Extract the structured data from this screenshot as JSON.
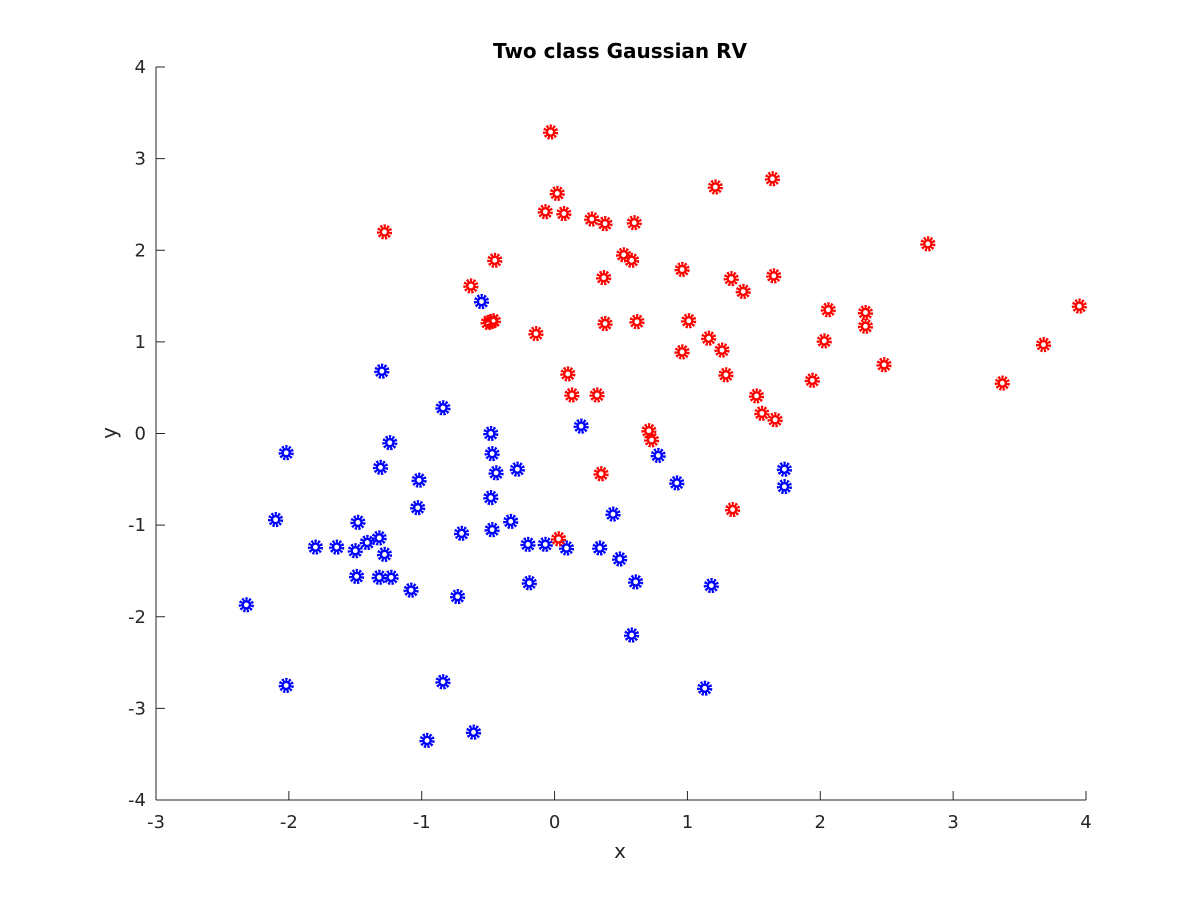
{
  "chart_data": {
    "type": "scatter",
    "title": "Two class Gaussian RV",
    "xlabel": "x",
    "ylabel": "y",
    "xlim": [
      -3,
      4
    ],
    "ylim": [
      -4,
      4
    ],
    "xticks": [
      -3,
      -2,
      -1,
      0,
      1,
      2,
      3,
      4
    ],
    "yticks": [
      -4,
      -3,
      -2,
      -1,
      0,
      1,
      2,
      3,
      4
    ],
    "xtick_labels": [
      "-3",
      "-2",
      "-1",
      "0",
      "1",
      "2",
      "3",
      "4"
    ],
    "ytick_labels": [
      "-4",
      "-3",
      "-2",
      "-1",
      "0",
      "1",
      "2",
      "3",
      "4"
    ],
    "grid": false,
    "series": [
      {
        "color": "#0000ff",
        "marker": "gear",
        "points": [
          [
            -0.55,
            1.44
          ],
          [
            -1.3,
            0.68
          ],
          [
            -0.84,
            0.28
          ],
          [
            -2.02,
            -0.21
          ],
          [
            -1.24,
            -0.1
          ],
          [
            -1.31,
            -0.37
          ],
          [
            -1.02,
            -0.51
          ],
          [
            -1.03,
            -0.81
          ],
          [
            -2.1,
            -0.94
          ],
          [
            -1.48,
            -0.97
          ],
          [
            -1.32,
            -1.14
          ],
          [
            -1.41,
            -1.19
          ],
          [
            -1.5,
            -1.28
          ],
          [
            -1.28,
            -1.32
          ],
          [
            -1.8,
            -1.24
          ],
          [
            -1.64,
            -1.24
          ],
          [
            -1.49,
            -1.56
          ],
          [
            -1.32,
            -1.57
          ],
          [
            -1.23,
            -1.57
          ],
          [
            -1.08,
            -1.71
          ],
          [
            -2.32,
            -1.87
          ],
          [
            -0.73,
            -1.78
          ],
          [
            -0.7,
            -1.09
          ],
          [
            -2.02,
            -2.75
          ],
          [
            -0.84,
            -2.71
          ],
          [
            -0.96,
            -3.35
          ],
          [
            -0.61,
            -3.26
          ],
          [
            -0.48,
            0.0
          ],
          [
            -0.47,
            -0.22
          ],
          [
            -0.44,
            -0.43
          ],
          [
            -0.28,
            -0.39
          ],
          [
            -0.48,
            -0.7
          ],
          [
            -0.47,
            -1.05
          ],
          [
            -0.33,
            -0.96
          ],
          [
            -0.2,
            -1.21
          ],
          [
            -0.07,
            -1.21
          ],
          [
            0.09,
            -1.25
          ],
          [
            -0.19,
            -1.63
          ],
          [
            0.2,
            0.08
          ],
          [
            0.34,
            -1.25
          ],
          [
            0.44,
            -0.88
          ],
          [
            0.49,
            -1.37
          ],
          [
            0.61,
            -1.62
          ],
          [
            0.58,
            -2.2
          ],
          [
            0.78,
            -0.24
          ],
          [
            0.92,
            -0.54
          ],
          [
            1.18,
            -1.66
          ],
          [
            1.13,
            -2.78
          ],
          [
            1.73,
            -0.39
          ],
          [
            1.73,
            -0.58
          ]
        ]
      },
      {
        "color": "#ff0000",
        "marker": "gear",
        "points": [
          [
            -0.03,
            3.29
          ],
          [
            0.02,
            2.62
          ],
          [
            -0.07,
            2.42
          ],
          [
            0.07,
            2.4
          ],
          [
            0.28,
            2.34
          ],
          [
            0.38,
            2.29
          ],
          [
            0.6,
            2.3
          ],
          [
            -1.28,
            2.2
          ],
          [
            0.52,
            1.95
          ],
          [
            0.58,
            1.89
          ],
          [
            -0.45,
            1.89
          ],
          [
            0.37,
            1.7
          ],
          [
            -0.63,
            1.61
          ],
          [
            -0.48,
            1.22
          ],
          [
            -0.5,
            1.21
          ],
          [
            -0.46,
            1.23
          ],
          [
            -0.14,
            1.09
          ],
          [
            0.38,
            1.2
          ],
          [
            0.62,
            1.22
          ],
          [
            1.21,
            2.69
          ],
          [
            1.64,
            2.78
          ],
          [
            0.96,
            1.79
          ],
          [
            1.33,
            1.69
          ],
          [
            1.65,
            1.72
          ],
          [
            1.42,
            1.55
          ],
          [
            1.01,
            1.23
          ],
          [
            1.16,
            1.04
          ],
          [
            0.96,
            0.89
          ],
          [
            1.26,
            0.91
          ],
          [
            1.29,
            0.64
          ],
          [
            1.52,
            0.41
          ],
          [
            1.56,
            0.22
          ],
          [
            1.66,
            0.15
          ],
          [
            2.06,
            1.35
          ],
          [
            2.03,
            1.01
          ],
          [
            1.94,
            0.58
          ],
          [
            2.34,
            1.32
          ],
          [
            2.34,
            1.17
          ],
          [
            2.48,
            0.75
          ],
          [
            2.81,
            2.07
          ],
          [
            3.37,
            0.55
          ],
          [
            3.68,
            0.97
          ],
          [
            3.95,
            1.39
          ],
          [
            0.1,
            0.65
          ],
          [
            0.13,
            0.42
          ],
          [
            0.32,
            0.42
          ],
          [
            0.71,
            0.03
          ],
          [
            0.73,
            -0.07
          ],
          [
            0.35,
            -0.44
          ],
          [
            1.34,
            -0.83
          ],
          [
            0.03,
            -1.15
          ]
        ]
      }
    ]
  }
}
